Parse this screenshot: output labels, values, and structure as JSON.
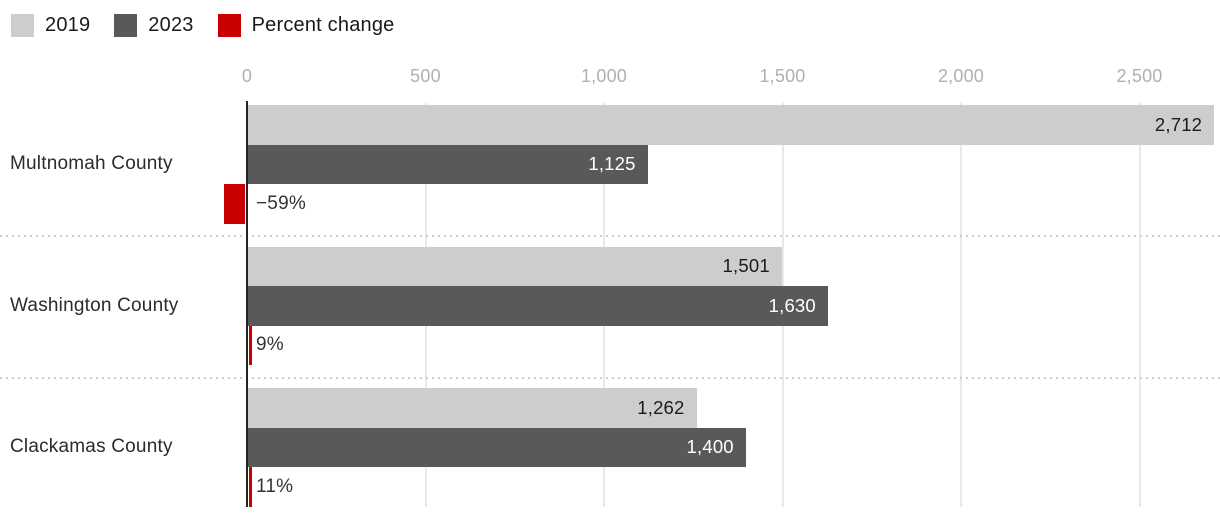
{
  "legend": {
    "items": [
      {
        "label": "2019",
        "color": "#cdcdcd"
      },
      {
        "label": "2023",
        "color": "#595959"
      },
      {
        "label": "Percent change",
        "color": "#c90000"
      }
    ]
  },
  "chart_data": {
    "type": "bar",
    "orientation": "horizontal",
    "title": "",
    "categories": [
      "Multnomah County",
      "Washington County",
      "Clackamas County"
    ],
    "series": [
      {
        "name": "2019",
        "color": "#cdcdcd",
        "values": [
          2712,
          1501,
          1262
        ],
        "value_labels": [
          "2,712",
          "1,501",
          "1,262"
        ],
        "label_color": "#1a1a1a"
      },
      {
        "name": "2023",
        "color": "#595959",
        "values": [
          1125,
          1630,
          1400
        ],
        "value_labels": [
          "1,125",
          "1,630",
          "1,400"
        ],
        "label_color": "#ffffff"
      }
    ],
    "percent_change": {
      "name": "Percent change",
      "color": "#c90000",
      "values": [
        -59,
        9,
        11
      ],
      "value_labels": [
        "−59%",
        "9%",
        "11%"
      ],
      "label_color": "#333333"
    },
    "x_axis": {
      "position": "top",
      "ticks": [
        0,
        500,
        1000,
        1500,
        2000,
        2500
      ],
      "tick_labels": [
        "0",
        "500",
        "1,000",
        "1,500",
        "2,000",
        "2,500"
      ],
      "range": [
        0,
        2725
      ],
      "grid": true
    },
    "styles": {
      "grid_color": "#e9e9e9",
      "axis_line_color": "#222222",
      "tick_text_color": "#b0b0b0",
      "category_text_color": "#2b2b2b",
      "separator_color": "#cccccc",
      "background": "#ffffff"
    }
  }
}
